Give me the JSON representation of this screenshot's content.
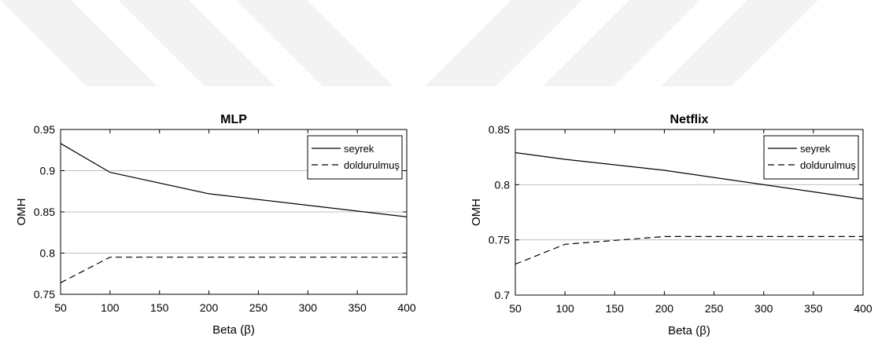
{
  "colors": {
    "series_line": "#000000",
    "grid": "#bfbfbf",
    "watermark": "#f3f3f3"
  },
  "chart_data": [
    {
      "type": "line",
      "title": "MLP",
      "xlabel": "Beta (β)",
      "ylabel": "OMH",
      "xlim": [
        50,
        400
      ],
      "ylim": [
        0.75,
        0.95
      ],
      "xticks": [
        "50",
        "100",
        "150",
        "200",
        "250",
        "300",
        "350",
        "400"
      ],
      "yticks": [
        "0.75",
        "0.8",
        "0.85",
        "0.9",
        "0.95"
      ],
      "grid": "horizontal",
      "legend_position": "top-right",
      "x": [
        50,
        100,
        200,
        400
      ],
      "series": [
        {
          "name": "seyrek",
          "style": "solid",
          "values": [
            0.933,
            0.898,
            0.872,
            0.844
          ]
        },
        {
          "name": "doldurulmuş",
          "style": "dashed",
          "values": [
            0.764,
            0.795,
            0.795,
            0.795
          ]
        }
      ]
    },
    {
      "type": "line",
      "title": "Netflix",
      "xlabel": "Beta (β)",
      "ylabel": "OMH",
      "xlim": [
        50,
        400
      ],
      "ylim": [
        0.7,
        0.85
      ],
      "xticks": [
        "50",
        "100",
        "150",
        "200",
        "250",
        "300",
        "350",
        "400"
      ],
      "yticks": [
        "0.7",
        "0.75",
        "0.8",
        "0.85"
      ],
      "grid": "horizontal",
      "legend_position": "top-right",
      "x": [
        50,
        100,
        200,
        400
      ],
      "series": [
        {
          "name": "seyrek",
          "style": "solid",
          "values": [
            0.829,
            0.823,
            0.813,
            0.787
          ]
        },
        {
          "name": "doldurulmuş",
          "style": "dashed",
          "values": [
            0.728,
            0.746,
            0.753,
            0.753
          ]
        }
      ]
    }
  ]
}
